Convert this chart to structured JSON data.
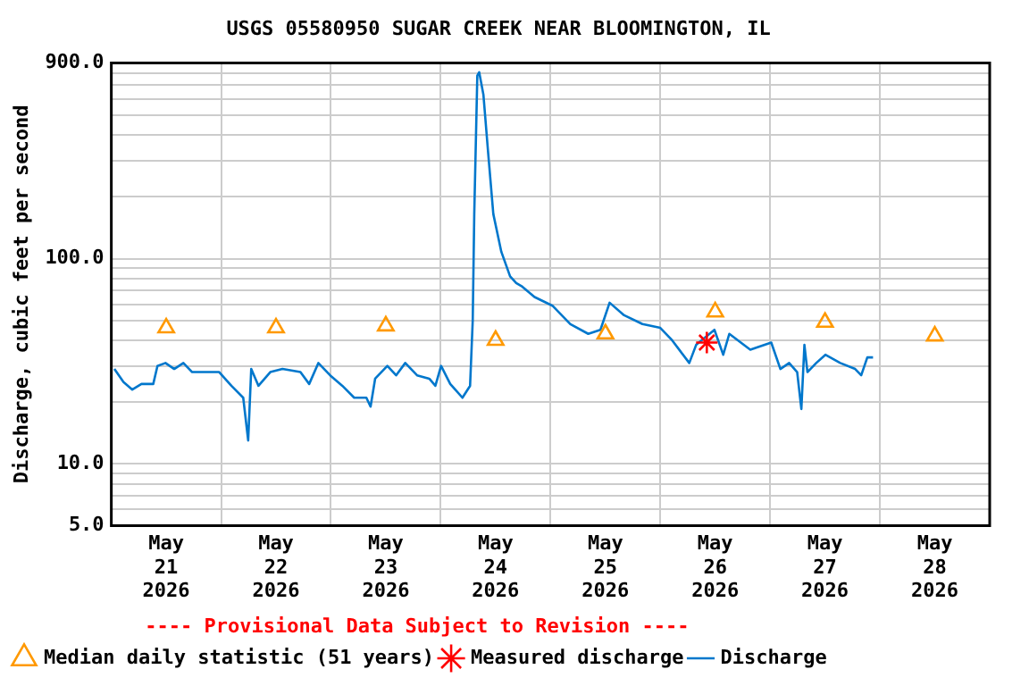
{
  "chart_data": {
    "type": "line",
    "title": "USGS 05580950 SUGAR CREEK NEAR BLOOMINGTON, IL",
    "ylabel": "Discharge, cubic feet per second",
    "annotations": [
      "---- Provisional Data Subject to Revision ----"
    ],
    "log": "y",
    "grid": true,
    "legend": "bottom",
    "xlim": [
      "2026-05-21T00:00",
      "2026-05-29T00:00"
    ],
    "xticks": [
      {
        "value": "2026-05-21T12:00",
        "label": "May 21 2026"
      },
      {
        "value": "2026-05-22T00:00",
        "label": null
      },
      {
        "value": "2026-05-22T12:00",
        "label": "May 22 2026"
      },
      {
        "value": "2026-05-23T00:00",
        "label": null
      },
      {
        "value": "2026-05-23T12:00",
        "label": "May 23 2026"
      },
      {
        "value": "2026-05-24T00:00",
        "label": null
      },
      {
        "value": "2026-05-24T12:00",
        "label": "May 24 2026"
      },
      {
        "value": "2026-05-25T00:00",
        "label": null
      },
      {
        "value": "2026-05-25T12:00",
        "label": "May 25 2026"
      },
      {
        "value": "2026-05-26T00:00",
        "label": null
      },
      {
        "value": "2026-05-26T12:00",
        "label": "May 26 2026"
      },
      {
        "value": "2026-05-27T00:00",
        "label": null
      },
      {
        "value": "2026-05-27T12:00",
        "label": "May 27 2026"
      },
      {
        "value": "2026-05-28T00:00",
        "label": null
      },
      {
        "value": "2026-05-28T12:00",
        "label": "May 28 2026"
      }
    ],
    "ylim": [
      5,
      900
    ],
    "yticks": [
      {
        "value": 5,
        "label": "5.0"
      },
      {
        "value": 6,
        "label": null
      },
      {
        "value": 7,
        "label": null
      },
      {
        "value": 8,
        "label": null
      },
      {
        "value": 9,
        "label": null
      },
      {
        "value": 10,
        "label": "10.0"
      },
      {
        "value": 20,
        "label": null
      },
      {
        "value": 30,
        "label": null
      },
      {
        "value": 40,
        "label": null
      },
      {
        "value": 50,
        "label": null
      },
      {
        "value": 60,
        "label": null
      },
      {
        "value": 70,
        "label": null
      },
      {
        "value": 80,
        "label": null
      },
      {
        "value": 90,
        "label": null
      },
      {
        "value": 100,
        "label": "100.0"
      },
      {
        "value": 200,
        "label": null
      },
      {
        "value": 300,
        "label": null
      },
      {
        "value": 400,
        "label": null
      },
      {
        "value": 500,
        "label": null
      },
      {
        "value": 600,
        "label": null
      },
      {
        "value": 700,
        "label": null
      },
      {
        "value": 800,
        "label": null
      },
      {
        "value": 900,
        "label": "900.0"
      }
    ],
    "series": [
      {
        "name": "Median daily statistic (51 years)",
        "type": "scatter",
        "marker": "triangle",
        "color": "#ff9900",
        "x": [
          "2026-05-21T12:00",
          "2026-05-22T12:00",
          "2026-05-23T12:00",
          "2026-05-24T12:00",
          "2026-05-25T12:00",
          "2026-05-26T12:00",
          "2026-05-27T12:00",
          "2026-05-28T12:00"
        ],
        "values": [
          46,
          46,
          47,
          40,
          43,
          55,
          49,
          42
        ]
      },
      {
        "name": "Measured discharge",
        "type": "scatter",
        "marker": "cross",
        "color": "#ff0000",
        "x": [
          "2026-05-26T10:10"
        ],
        "values": [
          39
        ]
      },
      {
        "name": "Discharge",
        "type": "line",
        "marker": "none",
        "color": "#0077cc",
        "x": [
          "2026-05-21T00:40",
          "2026-05-21T02:40",
          "2026-05-21T04:35",
          "2026-05-21T06:35",
          "2026-05-21T09:10",
          "2026-05-21T10:05",
          "2026-05-21T11:50",
          "2026-05-21T13:45",
          "2026-05-21T15:45",
          "2026-05-21T17:40",
          "2026-05-21T23:35",
          "2026-05-22T02:15",
          "2026-05-22T04:50",
          "2026-05-22T05:55",
          "2026-05-22T06:35",
          "2026-05-22T08:10",
          "2026-05-22T10:45",
          "2026-05-22T13:25",
          "2026-05-22T17:20",
          "2026-05-22T19:15",
          "2026-05-22T21:15",
          "2026-05-22T23:50",
          "2026-05-23T02:30",
          "2026-05-23T05:05",
          "2026-05-23T07:45",
          "2026-05-23T08:40",
          "2026-05-23T09:40",
          "2026-05-23T12:20",
          "2026-05-23T14:15",
          "2026-05-23T16:15",
          "2026-05-23T18:50",
          "2026-05-23T21:30",
          "2026-05-23T22:50",
          "2026-05-24T00:05",
          "2026-05-24T02:05",
          "2026-05-24T04:45",
          "2026-05-24T06:25",
          "2026-05-24T07:00",
          "2026-05-24T07:20",
          "2026-05-24T08:00",
          "2026-05-24T08:25",
          "2026-05-24T09:20",
          "2026-05-24T10:20",
          "2026-05-24T11:30",
          "2026-05-24T13:15",
          "2026-05-24T15:10",
          "2026-05-24T16:30",
          "2026-05-24T17:50",
          "2026-05-24T20:30",
          "2026-05-25T00:25",
          "2026-05-25T04:20",
          "2026-05-25T08:15",
          "2026-05-25T10:55",
          "2026-05-25T12:55",
          "2026-05-25T16:05",
          "2026-05-25T20:05",
          "2026-05-26T00:00",
          "2026-05-26T02:35",
          "2026-05-26T06:20",
          "2026-05-26T07:50",
          "2026-05-26T11:50",
          "2026-05-26T13:45",
          "2026-05-26T15:05",
          "2026-05-26T19:40",
          "2026-05-27T00:15",
          "2026-05-27T02:15",
          "2026-05-27T04:10",
          "2026-05-27T05:55",
          "2026-05-27T06:50",
          "2026-05-27T07:30",
          "2026-05-27T08:10",
          "2026-05-27T10:05",
          "2026-05-27T12:05",
          "2026-05-27T15:20",
          "2026-05-27T18:35",
          "2026-05-27T19:55",
          "2026-05-27T21:15",
          "2026-05-27T22:30"
        ],
        "values": [
          29,
          25,
          23,
          24.5,
          24.5,
          30,
          31,
          29,
          31,
          28,
          28,
          24,
          21,
          13,
          29,
          24,
          28,
          29,
          28,
          24.5,
          31,
          27,
          24,
          21,
          21,
          19,
          26,
          30,
          27,
          31,
          27,
          26,
          24,
          30,
          24.5,
          21,
          24,
          50,
          165,
          780,
          810,
          630,
          335,
          165,
          108,
          82,
          76,
          73,
          65,
          59,
          48,
          43,
          45,
          61,
          53,
          48,
          46,
          40,
          31,
          38,
          45,
          34,
          43,
          36,
          39,
          29,
          31,
          28,
          18.5,
          38,
          28,
          31,
          34,
          31,
          29,
          27,
          33,
          33
        ]
      }
    ]
  }
}
